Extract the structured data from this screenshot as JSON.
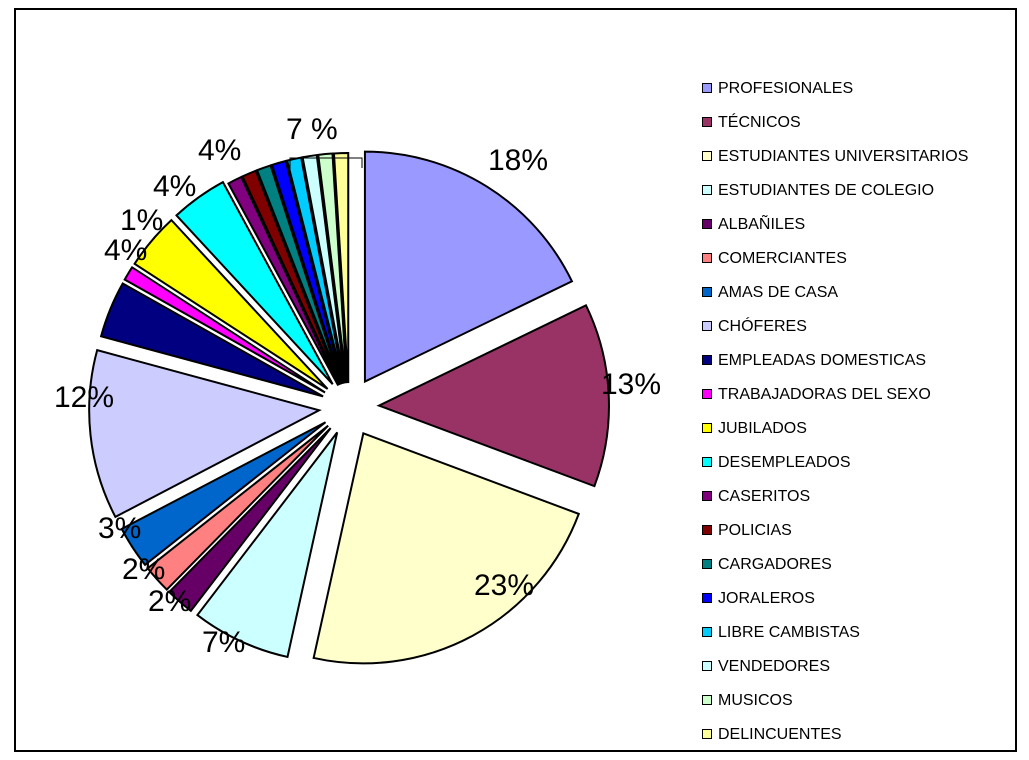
{
  "chart_data": {
    "type": "pie",
    "title": "",
    "legend_position": "right",
    "series": [
      {
        "name": "PROFESIONALES",
        "value": 18,
        "color": "#9999ff"
      },
      {
        "name": "TÉCNICOS",
        "value": 13,
        "color": "#993366"
      },
      {
        "name": "ESTUDIANTES UNIVERSITARIOS",
        "value": 23,
        "color": "#ffffcc"
      },
      {
        "name": "ESTUDIANTES DE COLEGIO",
        "value": 7,
        "color": "#ccffff"
      },
      {
        "name": "ALBAÑILES",
        "value": 2,
        "color": "#660066"
      },
      {
        "name": "COMERCIANTES",
        "value": 2,
        "color": "#ff8080"
      },
      {
        "name": "AMAS DE CASA",
        "value": 3,
        "color": "#0066cc"
      },
      {
        "name": "CHÓFERES",
        "value": 12,
        "color": "#ccccff"
      },
      {
        "name": "EMPLEADAS DOMESTICAS",
        "value": 4,
        "color": "#000080"
      },
      {
        "name": "TRABAJADORAS DEL SEXO",
        "value": 1,
        "color": "#ff00ff"
      },
      {
        "name": "JUBILADOS",
        "value": 4,
        "color": "#ffff00"
      },
      {
        "name": "DESEMPLEADOS",
        "value": 4,
        "color": "#00ffff"
      },
      {
        "name": "CASERITOS",
        "value": 1,
        "color": "#800080"
      },
      {
        "name": "POLICIAS",
        "value": 1,
        "color": "#800000"
      },
      {
        "name": "CARGADORES",
        "value": 1,
        "color": "#008080"
      },
      {
        "name": "JORALEROS",
        "value": 1,
        "color": "#0000ff"
      },
      {
        "name": "LIBRE CAMBISTAS",
        "value": 1,
        "color": "#00ccff"
      },
      {
        "name": "VENDEDORES",
        "value": 1,
        "color": "#ccffff"
      },
      {
        "name": "MUSICOS",
        "value": 1,
        "color": "#ccffcc"
      },
      {
        "name": "DELINCUENTES",
        "value": 1,
        "color": "#ffff99"
      }
    ],
    "data_labels": [
      {
        "text": "18%"
      },
      {
        "text": "13%"
      },
      {
        "text": "23%"
      },
      {
        "text": "7%"
      },
      {
        "text": "2%"
      },
      {
        "text": "2%"
      },
      {
        "text": "3%"
      },
      {
        "text": "12%"
      },
      {
        "text": "4%"
      },
      {
        "text": "1%"
      },
      {
        "text": "4%"
      },
      {
        "text": "4%"
      },
      {
        "text": "7 %"
      }
    ]
  }
}
